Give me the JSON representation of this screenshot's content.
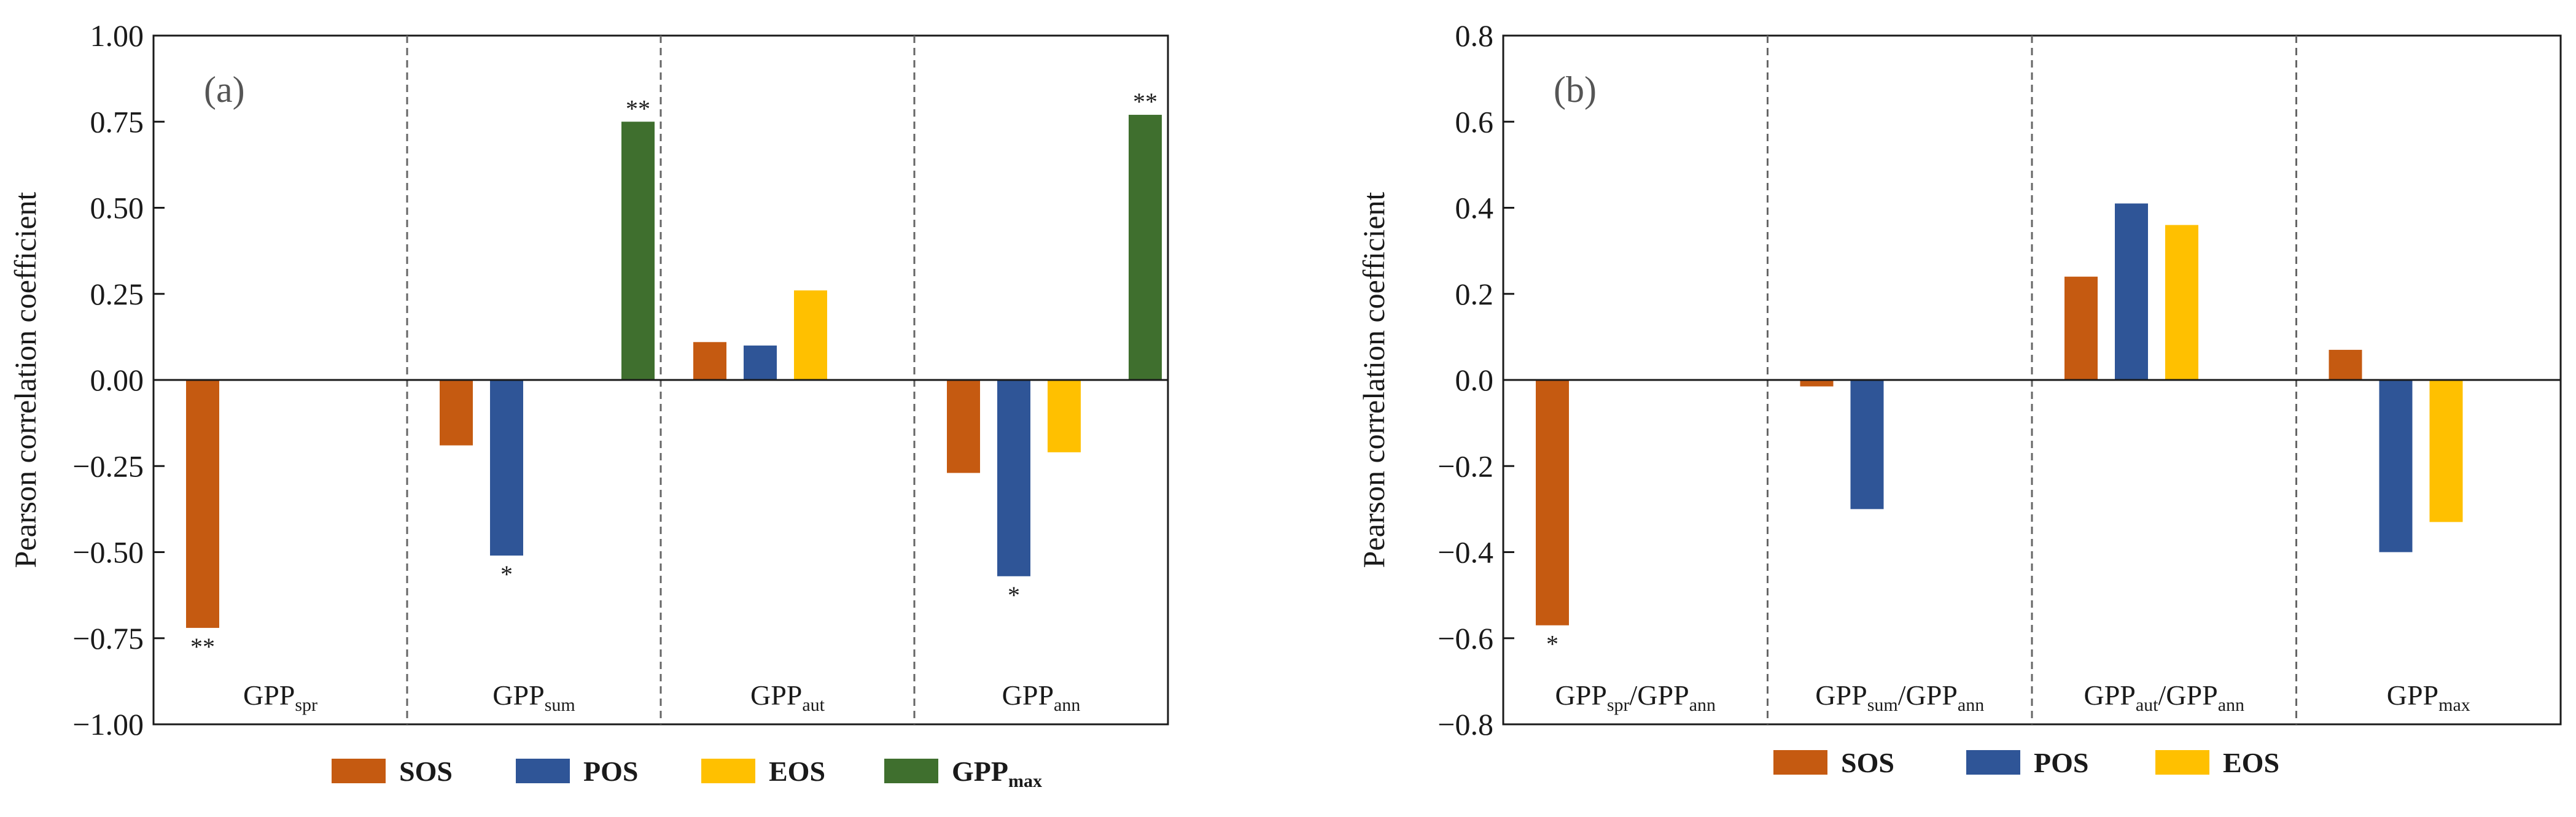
{
  "colors": {
    "SOS": "#c55a11",
    "POS": "#2f5597",
    "EOS": "#ffc000",
    "GPPmax": "#3f6f2e"
  },
  "chart_data": [
    {
      "type": "bar",
      "panel_label": "(a)",
      "ylabel": "Pearson correlation coefficient",
      "ylim": [
        -1.0,
        1.0
      ],
      "yticks": [
        "1.00",
        "0.75",
        "0.50",
        "0.25",
        "0.00",
        "−0.25",
        "−0.50",
        "−0.75",
        "−1.00"
      ],
      "ytick_values": [
        1.0,
        0.75,
        0.5,
        0.25,
        0.0,
        -0.25,
        -0.5,
        -0.75,
        -1.0
      ],
      "categories": [
        {
          "main": "GPP",
          "sub": "spr"
        },
        {
          "main": "GPP",
          "sub": "sum"
        },
        {
          "main": "GPP",
          "sub": "aut"
        },
        {
          "main": "GPP",
          "sub": "ann"
        }
      ],
      "series": [
        {
          "name": "SOS",
          "values": [
            -0.72,
            -0.19,
            0.11,
            -0.27
          ]
        },
        {
          "name": "POS",
          "values": [
            null,
            -0.51,
            0.1,
            -0.57
          ]
        },
        {
          "name": "EOS",
          "values": [
            null,
            null,
            0.26,
            -0.21
          ]
        },
        {
          "name": "GPPmax",
          "values": [
            null,
            0.75,
            null,
            0.77
          ]
        }
      ],
      "significance": [
        {
          "series": "SOS",
          "category": 0,
          "text": "**"
        },
        {
          "series": "POS",
          "category": 1,
          "text": "*"
        },
        {
          "series": "GPPmax",
          "category": 1,
          "text": "**"
        },
        {
          "series": "POS",
          "category": 3,
          "text": "*"
        },
        {
          "series": "GPPmax",
          "category": 3,
          "text": "**"
        }
      ],
      "legend": [
        {
          "key": "SOS",
          "main": "SOS",
          "sub": ""
        },
        {
          "key": "POS",
          "main": "POS",
          "sub": ""
        },
        {
          "key": "EOS",
          "main": "EOS",
          "sub": ""
        },
        {
          "key": "GPPmax",
          "main": "GPP",
          "sub": "max"
        }
      ],
      "legend_position": "bottom"
    },
    {
      "type": "bar",
      "panel_label": "(b)",
      "ylabel": "Pearson correlation coefficient",
      "ylim": [
        -0.8,
        0.8
      ],
      "yticks": [
        "0.8",
        "0.6",
        "0.4",
        "0.2",
        "0.0",
        "−0.2",
        "−0.4",
        "−0.6",
        "−0.8"
      ],
      "ytick_values": [
        0.8,
        0.6,
        0.4,
        0.2,
        0.0,
        -0.2,
        -0.4,
        -0.6,
        -0.8
      ],
      "categories": [
        {
          "main": "GPP",
          "sub": "spr",
          "main2": "/GPP",
          "sub2": "ann"
        },
        {
          "main": "GPP",
          "sub": "sum",
          "main2": "/GPP",
          "sub2": "ann"
        },
        {
          "main": "GPP",
          "sub": "aut",
          "main2": "/GPP",
          "sub2": "ann"
        },
        {
          "main": "GPP",
          "sub": "max"
        }
      ],
      "series": [
        {
          "name": "SOS",
          "values": [
            -0.57,
            -0.015,
            0.24,
            0.07
          ]
        },
        {
          "name": "POS",
          "values": [
            null,
            -0.3,
            0.41,
            -0.4
          ]
        },
        {
          "name": "EOS",
          "values": [
            null,
            null,
            0.36,
            -0.33
          ]
        }
      ],
      "significance": [
        {
          "series": "SOS",
          "category": 0,
          "text": "*"
        }
      ],
      "legend": [
        {
          "key": "SOS",
          "main": "SOS",
          "sub": ""
        },
        {
          "key": "POS",
          "main": "POS",
          "sub": ""
        },
        {
          "key": "EOS",
          "main": "EOS",
          "sub": ""
        }
      ],
      "legend_position": "bottom"
    }
  ]
}
